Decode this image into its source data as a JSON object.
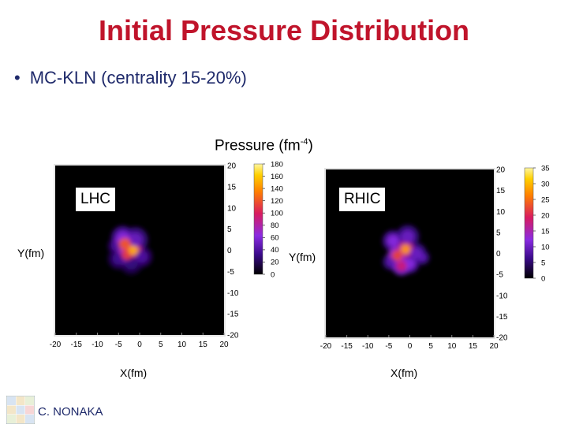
{
  "slide": {
    "title": "Initial Pressure Distribution",
    "bullet": "MC-KLN (centrality 15-20%)",
    "footer_name": "C. NONAKA"
  },
  "colors": {
    "title": "#c0142b",
    "text": "#1f2a6b",
    "plot_bg": "#000000"
  },
  "chart_data": [
    {
      "type": "heatmap",
      "panel_label": "LHC",
      "title": "Pressure (fm-4)",
      "xlabel": "X(fm)",
      "ylabel": "Y(fm)",
      "xlim": [
        -20,
        20
      ],
      "ylim": [
        -20,
        20
      ],
      "xticks": [
        -20,
        -15,
        -10,
        -5,
        0,
        5,
        10,
        15,
        20
      ],
      "yticks": [
        20,
        15,
        10,
        5,
        0,
        -5,
        -10,
        -15,
        -20
      ],
      "colorbar": {
        "min": 0,
        "max": 180,
        "ticks": [
          180,
          160,
          140,
          120,
          100,
          80,
          60,
          40,
          20,
          0
        ]
      },
      "blobs": [
        {
          "x": -3.5,
          "y": 1.5,
          "r": 2.0,
          "v": 120
        },
        {
          "x": -1.5,
          "y": 0.0,
          "r": 1.6,
          "v": 150
        },
        {
          "x": -3.0,
          "y": -1.0,
          "r": 1.8,
          "v": 110
        },
        {
          "x": -4.0,
          "y": 3.0,
          "r": 2.2,
          "v": 60
        },
        {
          "x": -1.0,
          "y": 2.5,
          "r": 2.4,
          "v": 50
        },
        {
          "x": -5.0,
          "y": -2.0,
          "r": 2.0,
          "v": 35
        },
        {
          "x": 0.5,
          "y": -1.5,
          "r": 2.0,
          "v": 40
        },
        {
          "x": -2.0,
          "y": -3.0,
          "r": 2.2,
          "v": 30
        },
        {
          "x": -5.5,
          "y": 1.0,
          "r": 1.6,
          "v": 40
        }
      ]
    },
    {
      "type": "heatmap",
      "panel_label": "RHIC",
      "xlabel": "X(fm)",
      "ylabel": "Y(fm)",
      "xlim": [
        -20,
        20
      ],
      "ylim": [
        -20,
        20
      ],
      "xticks": [
        -20,
        -15,
        -10,
        -5,
        0,
        5,
        10,
        15,
        20
      ],
      "yticks": [
        20,
        15,
        10,
        5,
        0,
        -5,
        -10,
        -15,
        -20
      ],
      "colorbar": {
        "min": 0,
        "max": 35,
        "ticks": [
          35,
          30,
          25,
          20,
          15,
          10,
          5,
          0
        ]
      },
      "blobs": [
        {
          "x": -1.0,
          "y": 1.0,
          "r": 1.6,
          "v": 28
        },
        {
          "x": -3.0,
          "y": -0.5,
          "r": 1.8,
          "v": 22
        },
        {
          "x": -2.0,
          "y": -3.0,
          "r": 1.8,
          "v": 18
        },
        {
          "x": -0.5,
          "y": 4.0,
          "r": 2.2,
          "v": 10
        },
        {
          "x": -4.0,
          "y": 3.0,
          "r": 2.0,
          "v": 12
        },
        {
          "x": 1.5,
          "y": 0.0,
          "r": 2.0,
          "v": 10
        },
        {
          "x": 3.0,
          "y": -1.0,
          "r": 1.4,
          "v": 9
        },
        {
          "x": -4.5,
          "y": -2.0,
          "r": 1.6,
          "v": 9
        },
        {
          "x": 0.0,
          "y": -2.5,
          "r": 1.8,
          "v": 12
        }
      ]
    }
  ]
}
